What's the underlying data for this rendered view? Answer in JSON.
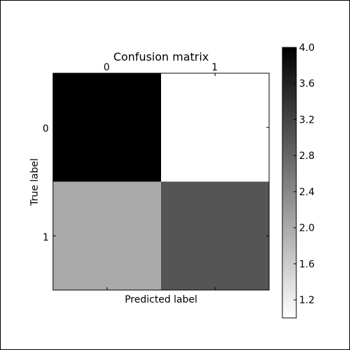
{
  "chart_data": {
    "type": "heatmap",
    "title": "Confusion matrix",
    "xlabel": "Predicted label",
    "ylabel": "True label",
    "x_categories": [
      "0",
      "1"
    ],
    "y_categories": [
      "0",
      "1"
    ],
    "values": [
      [
        4,
        1
      ],
      [
        2,
        3
      ]
    ],
    "colormap": "gray_r",
    "colorbar": {
      "range": [
        1,
        4
      ],
      "ticks": [
        "1.2",
        "1.6",
        "2.0",
        "2.4",
        "2.8",
        "3.2",
        "3.6",
        "4.0"
      ]
    },
    "x_ticks_position": "top",
    "legend": "colorbar on the right"
  },
  "colors": {
    "background": "#ffffff",
    "frame": "#000000",
    "text": "#000000"
  }
}
